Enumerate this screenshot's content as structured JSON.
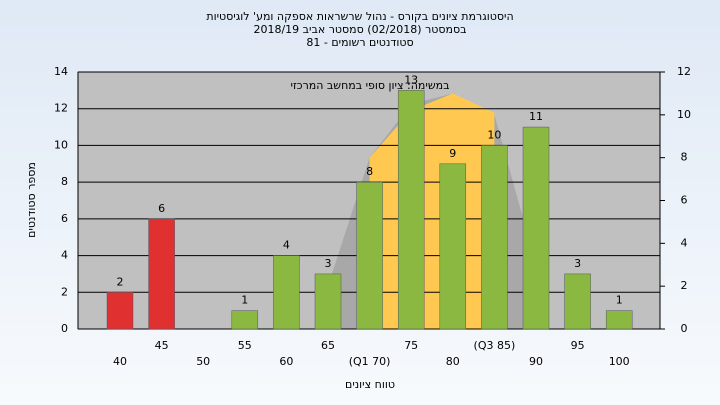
{
  "chart_data": {
    "type": "bar",
    "title": [
      "היסטוגרמת ציונים בקורס - נהול שרשראות אספקה ומע' לוגיסטיות",
      "בסמסטר  (02/2018)  סמסטר אביב 2018/19",
      "סטודנטים רשומים - 81"
    ],
    "annotation": "במשימה: ציון סופי במחשב המרכזי",
    "x_label": "טווח ציונים",
    "y_label": "מספר סטודנטים",
    "categories": [
      "40",
      "45",
      "50",
      "55",
      "60",
      "65",
      "(Q1 70)",
      "75",
      "80",
      "(Q3 85)",
      "90",
      "95",
      "100"
    ],
    "values": [
      2,
      6,
      null,
      1,
      4,
      3,
      8,
      13,
      9,
      10,
      11,
      3,
      1
    ],
    "colors": [
      "#e03030",
      "#e03030",
      "#8bb840",
      "#8bb840",
      "#8bb840",
      "#8bb840",
      "#8bb840",
      "#8bb840",
      "#8bb840",
      "#8bb840",
      "#8bb840",
      "#8bb840",
      "#8bb840"
    ],
    "areas": [
      {
        "color": "#a8a8a8",
        "axis": "y2",
        "values": [
          null,
          null,
          null,
          null,
          null,
          2,
          8,
          10.5,
          11,
          10,
          3,
          null,
          null
        ]
      },
      {
        "color": "#ffc850",
        "axis": "y2",
        "values": [
          null,
          null,
          null,
          null,
          null,
          null,
          8,
          10.2,
          11,
          10.1,
          null,
          null,
          null
        ]
      }
    ],
    "ylim": [
      0,
      14
    ],
    "yticks": [
      0,
      2,
      4,
      6,
      8,
      10,
      12,
      14
    ],
    "y2lim": [
      0,
      12
    ],
    "y2ticks": [
      0,
      2,
      4,
      6,
      8,
      10,
      12
    ],
    "grid": true
  }
}
